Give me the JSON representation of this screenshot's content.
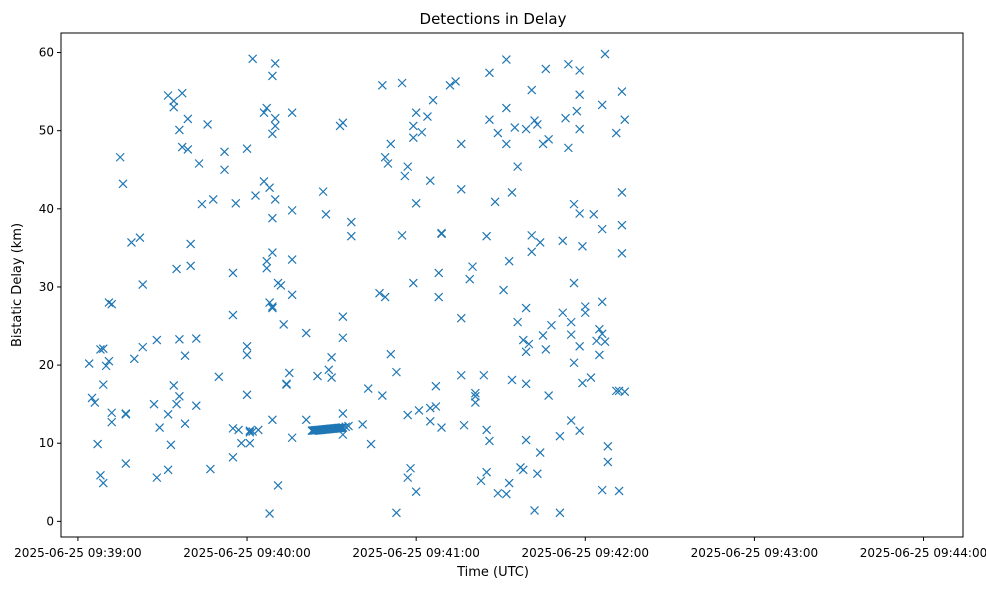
{
  "chart_data": {
    "type": "scatter",
    "title": "Detections in Delay",
    "xlabel": "Time (UTC)",
    "ylabel": "Bistatic Delay (km)",
    "marker": "x",
    "color": "#1f77b4",
    "grid": false,
    "x_axis": {
      "kind": "time",
      "range": [
        "2025-06-25 09:38:54",
        "2025-06-25 09:44:14"
      ],
      "ticks": [
        {
          "value": "2025-06-25 09:39:00",
          "label": "2025-06-25 09:39:00"
        },
        {
          "value": "2025-06-25 09:40:00",
          "label": "2025-06-25 09:40:00"
        },
        {
          "value": "2025-06-25 09:41:00",
          "label": "2025-06-25 09:41:00"
        },
        {
          "value": "2025-06-25 09:42:00",
          "label": "2025-06-25 09:42:00"
        },
        {
          "value": "2025-06-25 09:43:00",
          "label": "2025-06-25 09:43:00"
        },
        {
          "value": "2025-06-25 09:44:00",
          "label": "2025-06-25 09:44:00"
        }
      ]
    },
    "y_axis": {
      "range": [
        -2,
        62.5
      ],
      "ticks": [
        0,
        10,
        20,
        30,
        40,
        50,
        60
      ]
    },
    "points": [
      [
        "2025-06-25 09:39:04",
        20.2
      ],
      [
        "2025-06-25 09:39:05",
        15.8
      ],
      [
        "2025-06-25 09:39:06",
        15.2
      ],
      [
        "2025-06-25 09:39:07",
        9.9
      ],
      [
        "2025-06-25 09:39:08",
        22.0
      ],
      [
        "2025-06-25 09:39:09",
        22.1
      ],
      [
        "2025-06-25 09:39:08",
        5.9
      ],
      [
        "2025-06-25 09:39:09",
        4.9
      ],
      [
        "2025-06-25 09:39:09",
        17.5
      ],
      [
        "2025-06-25 09:39:10",
        19.9
      ],
      [
        "2025-06-25 09:39:11",
        20.5
      ],
      [
        "2025-06-25 09:39:11",
        28.0
      ],
      [
        "2025-06-25 09:39:12",
        27.8
      ],
      [
        "2025-06-25 09:39:12",
        13.9
      ],
      [
        "2025-06-25 09:39:12",
        12.7
      ],
      [
        "2025-06-25 09:39:15",
        46.6
      ],
      [
        "2025-06-25 09:39:16",
        43.2
      ],
      [
        "2025-06-25 09:39:17",
        13.8
      ],
      [
        "2025-06-25 09:39:17",
        13.7
      ],
      [
        "2025-06-25 09:39:17",
        7.4
      ],
      [
        "2025-06-25 09:39:19",
        35.7
      ],
      [
        "2025-06-25 09:39:20",
        20.8
      ],
      [
        "2025-06-25 09:39:22",
        36.3
      ],
      [
        "2025-06-25 09:39:23",
        30.3
      ],
      [
        "2025-06-25 09:39:23",
        22.3
      ],
      [
        "2025-06-25 09:39:27",
        15.0
      ],
      [
        "2025-06-25 09:39:28",
        23.2
      ],
      [
        "2025-06-25 09:39:28",
        5.6
      ],
      [
        "2025-06-25 09:39:29",
        12.0
      ],
      [
        "2025-06-25 09:39:32",
        6.6
      ],
      [
        "2025-06-25 09:39:32",
        54.5
      ],
      [
        "2025-06-25 09:39:32",
        13.7
      ],
      [
        "2025-06-25 09:39:33",
        9.8
      ],
      [
        "2025-06-25 09:39:34",
        17.4
      ],
      [
        "2025-06-25 09:39:34",
        53.8
      ],
      [
        "2025-06-25 09:39:34",
        53.0
      ],
      [
        "2025-06-25 09:39:35",
        15.0
      ],
      [
        "2025-06-25 09:39:35",
        32.3
      ],
      [
        "2025-06-25 09:39:36",
        16.0
      ],
      [
        "2025-06-25 09:39:36",
        23.3
      ],
      [
        "2025-06-25 09:39:36",
        50.1
      ],
      [
        "2025-06-25 09:39:37",
        47.9
      ],
      [
        "2025-06-25 09:39:37",
        54.8
      ],
      [
        "2025-06-25 09:39:38",
        21.2
      ],
      [
        "2025-06-25 09:39:38",
        12.5
      ],
      [
        "2025-06-25 09:39:39",
        47.6
      ],
      [
        "2025-06-25 09:39:39",
        51.5
      ],
      [
        "2025-06-25 09:39:40",
        35.5
      ],
      [
        "2025-06-25 09:39:40",
        32.7
      ],
      [
        "2025-06-25 09:39:42",
        23.4
      ],
      [
        "2025-06-25 09:39:42",
        14.8
      ],
      [
        "2025-06-25 09:39:43",
        45.8
      ],
      [
        "2025-06-25 09:39:44",
        40.6
      ],
      [
        "2025-06-25 09:39:46",
        50.8
      ],
      [
        "2025-06-25 09:39:47",
        6.7
      ],
      [
        "2025-06-25 09:39:48",
        41.2
      ],
      [
        "2025-06-25 09:39:50",
        18.5
      ],
      [
        "2025-06-25 09:39:52",
        47.3
      ],
      [
        "2025-06-25 09:39:52",
        45.0
      ],
      [
        "2025-06-25 09:39:55",
        31.8
      ],
      [
        "2025-06-25 09:39:55",
        26.4
      ],
      [
        "2025-06-25 09:39:55",
        11.9
      ],
      [
        "2025-06-25 09:39:55",
        8.2
      ],
      [
        "2025-06-25 09:39:56",
        40.7
      ],
      [
        "2025-06-25 09:39:57",
        11.7
      ],
      [
        "2025-06-25 09:39:58",
        10.0
      ],
      [
        "2025-06-25 09:40:00",
        47.7
      ],
      [
        "2025-06-25 09:40:00",
        22.4
      ],
      [
        "2025-06-25 09:40:00",
        21.3
      ],
      [
        "2025-06-25 09:40:00",
        16.2
      ],
      [
        "2025-06-25 09:40:01",
        11.6
      ],
      [
        "2025-06-25 09:40:01",
        11.4
      ],
      [
        "2025-06-25 09:40:01",
        10.0
      ],
      [
        "2025-06-25 09:40:02",
        11.5
      ],
      [
        "2025-06-25 09:40:02",
        59.2
      ],
      [
        "2025-06-25 09:40:03",
        41.7
      ],
      [
        "2025-06-25 09:40:04",
        11.7
      ],
      [
        "2025-06-25 09:40:06",
        52.3
      ],
      [
        "2025-06-25 09:40:06",
        43.5
      ],
      [
        "2025-06-25 09:40:07",
        33.3
      ],
      [
        "2025-06-25 09:40:07",
        32.4
      ],
      [
        "2025-06-25 09:40:07",
        52.9
      ],
      [
        "2025-06-25 09:40:08",
        42.7
      ],
      [
        "2025-06-25 09:40:08",
        28.0
      ],
      [
        "2025-06-25 09:40:08",
        1.0
      ],
      [
        "2025-06-25 09:40:09",
        57.0
      ],
      [
        "2025-06-25 09:40:09",
        49.6
      ],
      [
        "2025-06-25 09:40:09",
        27.5
      ],
      [
        "2025-06-25 09:40:09",
        27.3
      ],
      [
        "2025-06-25 09:40:09",
        34.4
      ],
      [
        "2025-06-25 09:40:09",
        38.8
      ],
      [
        "2025-06-25 09:40:09",
        13.0
      ],
      [
        "2025-06-25 09:40:10",
        58.6
      ],
      [
        "2025-06-25 09:40:10",
        51.6
      ],
      [
        "2025-06-25 09:40:10",
        50.6
      ],
      [
        "2025-06-25 09:40:10",
        41.2
      ],
      [
        "2025-06-25 09:40:11",
        4.6
      ],
      [
        "2025-06-25 09:40:11",
        30.5
      ],
      [
        "2025-06-25 09:40:12",
        30.2
      ],
      [
        "2025-06-25 09:40:13",
        25.2
      ],
      [
        "2025-06-25 09:40:14",
        17.5
      ],
      [
        "2025-06-25 09:40:14",
        17.6
      ],
      [
        "2025-06-25 09:40:15",
        19.0
      ],
      [
        "2025-06-25 09:40:16",
        39.8
      ],
      [
        "2025-06-25 09:40:16",
        33.5
      ],
      [
        "2025-06-25 09:40:16",
        29.0
      ],
      [
        "2025-06-25 09:40:16",
        10.7
      ],
      [
        "2025-06-25 09:40:16",
        52.3
      ],
      [
        "2025-06-25 09:40:21",
        24.1
      ],
      [
        "2025-06-25 09:40:21",
        13.0
      ],
      [
        "2025-06-25 09:40:25",
        18.6
      ],
      [
        "2025-06-25 09:40:27",
        42.2
      ],
      [
        "2025-06-25 09:40:28",
        39.3
      ],
      [
        "2025-06-25 09:40:29",
        19.4
      ],
      [
        "2025-06-25 09:40:30",
        18.4
      ],
      [
        "2025-06-25 09:40:30",
        21.0
      ],
      [
        "2025-06-25 09:40:33",
        50.6
      ],
      [
        "2025-06-25 09:40:34",
        51.0
      ],
      [
        "2025-06-25 09:40:34",
        26.2
      ],
      [
        "2025-06-25 09:40:34",
        23.5
      ],
      [
        "2025-06-25 09:40:34",
        13.8
      ],
      [
        "2025-06-25 09:40:34",
        11.1
      ],
      [
        "2025-06-25 09:40:35",
        12.1
      ],
      [
        "2025-06-25 09:40:36",
        12.2
      ],
      [
        "2025-06-25 09:40:37",
        38.3
      ],
      [
        "2025-06-25 09:40:37",
        36.5
      ],
      [
        "2025-06-25 09:40:41",
        12.4
      ],
      [
        "2025-06-25 09:40:43",
        17.0
      ],
      [
        "2025-06-25 09:40:44",
        9.9
      ],
      [
        "2025-06-25 09:40:47",
        29.2
      ],
      [
        "2025-06-25 09:40:48",
        16.1
      ],
      [
        "2025-06-25 09:40:49",
        28.7
      ],
      [
        "2025-06-25 09:40:48",
        55.8
      ],
      [
        "2025-06-25 09:40:49",
        46.6
      ],
      [
        "2025-06-25 09:40:50",
        45.8
      ],
      [
        "2025-06-25 09:40:51",
        48.3
      ],
      [
        "2025-06-25 09:40:51",
        21.4
      ],
      [
        "2025-06-25 09:40:53",
        19.1
      ],
      [
        "2025-06-25 09:40:53",
        1.1
      ],
      [
        "2025-06-25 09:40:55",
        56.1
      ],
      [
        "2025-06-25 09:40:55",
        36.6
      ],
      [
        "2025-06-25 09:40:56",
        44.2
      ],
      [
        "2025-06-25 09:40:57",
        45.4
      ],
      [
        "2025-06-25 09:40:57",
        13.6
      ],
      [
        "2025-06-25 09:40:57",
        5.6
      ],
      [
        "2025-06-25 09:40:58",
        6.8
      ],
      [
        "2025-06-25 09:40:59",
        30.5
      ],
      [
        "2025-06-25 09:40:59",
        50.6
      ],
      [
        "2025-06-25 09:40:59",
        49.1
      ],
      [
        "2025-06-25 09:41:00",
        52.3
      ],
      [
        "2025-06-25 09:41:00",
        40.7
      ],
      [
        "2025-06-25 09:41:00",
        3.8
      ],
      [
        "2025-06-25 09:41:01",
        14.2
      ],
      [
        "2025-06-25 09:41:02",
        49.8
      ],
      [
        "2025-06-25 09:41:04",
        51.8
      ],
      [
        "2025-06-25 09:41:05",
        43.6
      ],
      [
        "2025-06-25 09:41:05",
        14.5
      ],
      [
        "2025-06-25 09:41:05",
        12.8
      ],
      [
        "2025-06-25 09:41:06",
        53.9
      ],
      [
        "2025-06-25 09:41:07",
        14.7
      ],
      [
        "2025-06-25 09:41:07",
        17.3
      ],
      [
        "2025-06-25 09:41:08",
        31.8
      ],
      [
        "2025-06-25 09:41:08",
        28.7
      ],
      [
        "2025-06-25 09:41:09",
        36.8
      ],
      [
        "2025-06-25 09:41:09",
        36.9
      ],
      [
        "2025-06-25 09:41:09",
        12.0
      ],
      [
        "2025-06-25 09:41:12",
        55.8
      ],
      [
        "2025-06-25 09:41:14",
        56.3
      ],
      [
        "2025-06-25 09:41:16",
        42.5
      ],
      [
        "2025-06-25 09:41:16",
        26.0
      ],
      [
        "2025-06-25 09:41:16",
        18.7
      ],
      [
        "2025-06-25 09:41:16",
        48.3
      ],
      [
        "2025-06-25 09:41:17",
        12.3
      ],
      [
        "2025-06-25 09:41:19",
        31.0
      ],
      [
        "2025-06-25 09:41:20",
        32.6
      ],
      [
        "2025-06-25 09:41:21",
        16.4
      ],
      [
        "2025-06-25 09:41:21",
        15.2
      ],
      [
        "2025-06-25 09:41:21",
        16.0
      ],
      [
        "2025-06-25 09:41:23",
        5.2
      ],
      [
        "2025-06-25 09:41:24",
        18.7
      ],
      [
        "2025-06-25 09:41:25",
        6.3
      ],
      [
        "2025-06-25 09:41:25",
        36.5
      ],
      [
        "2025-06-25 09:41:25",
        11.7
      ],
      [
        "2025-06-25 09:41:26",
        10.3
      ],
      [
        "2025-06-25 09:41:26",
        57.4
      ],
      [
        "2025-06-25 09:41:26",
        51.4
      ],
      [
        "2025-06-25 09:41:28",
        40.9
      ],
      [
        "2025-06-25 09:41:29",
        3.6
      ],
      [
        "2025-06-25 09:41:29",
        49.7
      ],
      [
        "2025-06-25 09:41:31",
        29.6
      ],
      [
        "2025-06-25 09:41:32",
        59.1
      ],
      [
        "2025-06-25 09:41:32",
        52.9
      ],
      [
        "2025-06-25 09:41:32",
        48.3
      ],
      [
        "2025-06-25 09:41:32",
        3.5
      ],
      [
        "2025-06-25 09:41:33",
        4.9
      ],
      [
        "2025-06-25 09:41:33",
        33.3
      ],
      [
        "2025-06-25 09:41:34",
        42.1
      ],
      [
        "2025-06-25 09:41:34",
        18.1
      ],
      [
        "2025-06-25 09:41:35",
        50.4
      ],
      [
        "2025-06-25 09:41:36",
        45.4
      ],
      [
        "2025-06-25 09:41:36",
        25.5
      ],
      [
        "2025-06-25 09:41:37",
        6.9
      ],
      [
        "2025-06-25 09:41:38",
        6.6
      ],
      [
        "2025-06-25 09:41:38",
        23.2
      ],
      [
        "2025-06-25 09:41:39",
        10.4
      ],
      [
        "2025-06-25 09:41:39",
        27.3
      ],
      [
        "2025-06-25 09:41:39",
        17.6
      ],
      [
        "2025-06-25 09:41:39",
        21.7
      ],
      [
        "2025-06-25 09:41:39",
        50.2
      ],
      [
        "2025-06-25 09:41:40",
        22.7
      ],
      [
        "2025-06-25 09:41:41",
        34.5
      ],
      [
        "2025-06-25 09:41:41",
        36.6
      ],
      [
        "2025-06-25 09:41:41",
        55.2
      ],
      [
        "2025-06-25 09:41:42",
        1.4
      ],
      [
        "2025-06-25 09:41:42",
        51.3
      ],
      [
        "2025-06-25 09:41:43",
        50.8
      ],
      [
        "2025-06-25 09:41:43",
        6.1
      ],
      [
        "2025-06-25 09:41:44",
        8.8
      ],
      [
        "2025-06-25 09:41:44",
        35.7
      ],
      [
        "2025-06-25 09:41:45",
        23.8
      ],
      [
        "2025-06-25 09:41:45",
        48.3
      ],
      [
        "2025-06-25 09:41:46",
        22.0
      ],
      [
        "2025-06-25 09:41:46",
        57.9
      ],
      [
        "2025-06-25 09:41:47",
        16.1
      ],
      [
        "2025-06-25 09:41:47",
        48.9
      ],
      [
        "2025-06-25 09:41:48",
        25.1
      ],
      [
        "2025-06-25 09:41:51",
        10.9
      ],
      [
        "2025-06-25 09:41:51",
        1.1
      ],
      [
        "2025-06-25 09:41:52",
        35.9
      ],
      [
        "2025-06-25 09:41:52",
        26.7
      ],
      [
        "2025-06-25 09:41:53",
        51.6
      ],
      [
        "2025-06-25 09:41:54",
        58.5
      ],
      [
        "2025-06-25 09:41:54",
        47.8
      ],
      [
        "2025-06-25 09:41:55",
        25.5
      ],
      [
        "2025-06-25 09:41:55",
        23.9
      ],
      [
        "2025-06-25 09:41:55",
        12.9
      ],
      [
        "2025-06-25 09:41:56",
        40.6
      ],
      [
        "2025-06-25 09:41:56",
        30.5
      ],
      [
        "2025-06-25 09:41:56",
        20.3
      ],
      [
        "2025-06-25 09:41:57",
        52.5
      ],
      [
        "2025-06-25 09:41:58",
        22.4
      ],
      [
        "2025-06-25 09:41:58",
        11.6
      ],
      [
        "2025-06-25 09:41:58",
        39.4
      ],
      [
        "2025-06-25 09:41:58",
        54.6
      ],
      [
        "2025-06-25 09:41:58",
        50.2
      ],
      [
        "2025-06-25 09:41:58",
        57.7
      ],
      [
        "2025-06-25 09:41:59",
        17.7
      ],
      [
        "2025-06-25 09:41:59",
        35.2
      ],
      [
        "2025-06-25 09:42:00",
        27.5
      ],
      [
        "2025-06-25 09:42:00",
        26.7
      ],
      [
        "2025-06-25 09:42:02",
        18.4
      ],
      [
        "2025-06-25 09:42:03",
        39.3
      ],
      [
        "2025-06-25 09:42:04",
        23.1
      ],
      [
        "2025-06-25 09:42:05",
        21.3
      ],
      [
        "2025-06-25 09:42:05",
        24.6
      ],
      [
        "2025-06-25 09:42:06",
        24.0
      ],
      [
        "2025-06-25 09:42:06",
        53.3
      ],
      [
        "2025-06-25 09:42:06",
        4.0
      ],
      [
        "2025-06-25 09:42:06",
        37.4
      ],
      [
        "2025-06-25 09:42:06",
        28.1
      ],
      [
        "2025-06-25 09:42:07",
        23.0
      ],
      [
        "2025-06-25 09:42:07",
        59.8
      ],
      [
        "2025-06-25 09:42:08",
        7.6
      ],
      [
        "2025-06-25 09:42:08",
        9.6
      ],
      [
        "2025-06-25 09:42:11",
        49.7
      ],
      [
        "2025-06-25 09:42:11",
        16.7
      ],
      [
        "2025-06-25 09:42:12",
        16.7
      ],
      [
        "2025-06-25 09:42:12",
        3.9
      ],
      [
        "2025-06-25 09:42:13",
        34.3
      ],
      [
        "2025-06-25 09:42:13",
        42.1
      ],
      [
        "2025-06-25 09:42:13",
        37.9
      ],
      [
        "2025-06-25 09:42:13",
        55.0
      ],
      [
        "2025-06-25 09:42:14",
        51.4
      ],
      [
        "2025-06-25 09:42:14",
        16.6
      ]
    ],
    "cluster": {
      "x_start": "2025-06-25 09:40:23",
      "x_end": "2025-06-25 09:40:34",
      "count": 34,
      "y_start": 11.6,
      "y_end": 12.0
    }
  }
}
